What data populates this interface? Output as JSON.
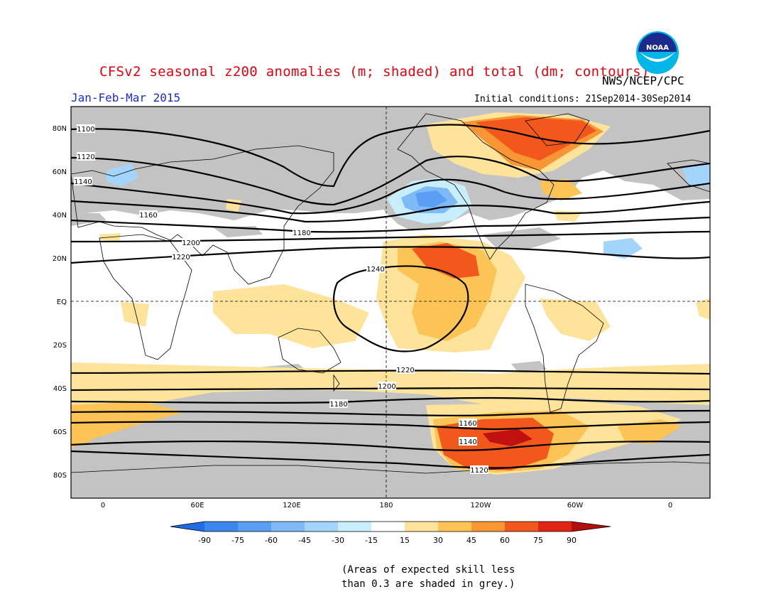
{
  "header": {
    "title": "CFSv2 seasonal z200 anomalies (m; shaded) and total (dm; contours)",
    "agency": "NWS/NCEP/CPC",
    "logo_text": "NOAA",
    "period": "Jan-Feb-Mar 2015",
    "initial_conditions": "Initial conditions: 21Sep2014-30Sep2014"
  },
  "map": {
    "lat_labels": [
      "80N",
      "60N",
      "40N",
      "20N",
      "EQ",
      "20S",
      "40S",
      "60S",
      "80S"
    ],
    "lon_labels": [
      "0",
      "60E",
      "120E",
      "180",
      "120W",
      "60W",
      "0"
    ],
    "contour_labels": [
      "1100",
      "1120",
      "1140",
      "1160",
      "1180",
      "1200",
      "1220",
      "1240",
      "1120",
      "1140",
      "1160",
      "1180",
      "1200",
      "1220"
    ]
  },
  "colorbar": {
    "ticks": [
      "-90",
      "-75",
      "-60",
      "-45",
      "-30",
      "-15",
      "15",
      "30",
      "45",
      "60",
      "75",
      "90"
    ],
    "colors": [
      "#1e6ee6",
      "#3c87ee",
      "#5a9ff3",
      "#7dbaf6",
      "#a2d5f9",
      "#c8eefb",
      "#ffffff",
      "#fde49a",
      "#fbc455",
      "#f89633",
      "#f2581c",
      "#e02612",
      "#b30f0f",
      "#8e0a0a"
    ]
  },
  "colors": {
    "grey_skill": "#c3c3c3",
    "title_red": "#e8000b",
    "period_blue": "#1a2bd6"
  },
  "note": {
    "line1": "(Areas of expected skill less",
    "line2": "than 0.3 are shaded in grey.)"
  }
}
